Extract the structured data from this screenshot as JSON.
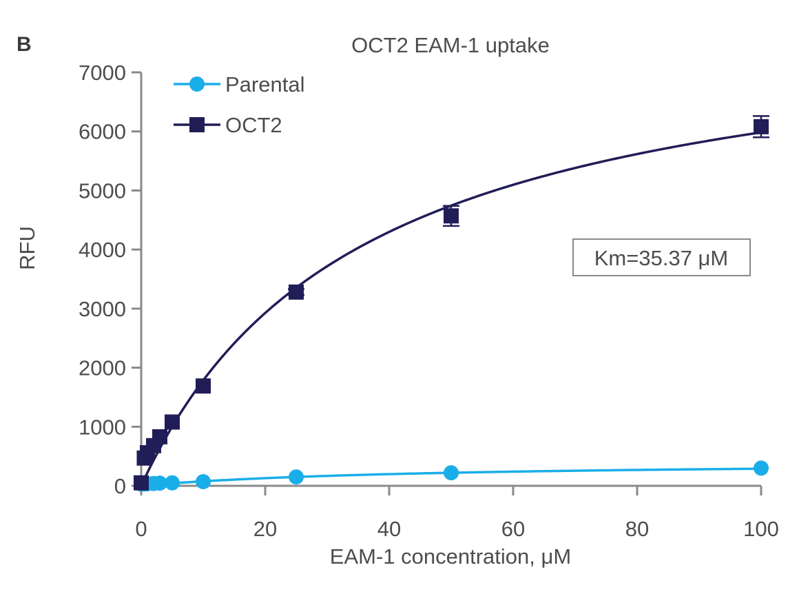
{
  "chart_data": {
    "type": "scatter",
    "panel_label": "B",
    "title": "OCT2 EAM-1 uptake",
    "xlabel": "EAM-1 concentration, μM",
    "ylabel": "RFU",
    "xlim": [
      0,
      100
    ],
    "ylim": [
      0,
      7000
    ],
    "x_ticks": [
      0,
      20,
      40,
      60,
      80,
      100
    ],
    "y_ticks": [
      0,
      1000,
      2000,
      3000,
      4000,
      5000,
      6000,
      7000
    ],
    "grid": false,
    "legend_position": "top-left",
    "annotation": "Km=35.37 μM",
    "series": [
      {
        "name": "Parental",
        "color": "#1aaee8",
        "marker": "circle",
        "fit": "michaelis-menten",
        "fit_params": {
          "vmax": 420,
          "km": 45
        },
        "x": [
          0,
          0.5,
          1,
          2,
          3,
          5,
          10,
          25,
          50,
          100
        ],
        "y": [
          30,
          30,
          35,
          40,
          45,
          50,
          70,
          150,
          220,
          300
        ],
        "err": [
          0,
          0,
          0,
          0,
          0,
          0,
          0,
          0,
          0,
          0
        ]
      },
      {
        "name": "OCT2",
        "color": "#211d56",
        "marker": "square",
        "fit": "michaelis-menten",
        "fit_params": {
          "vmax": 8100,
          "km": 35.37
        },
        "x": [
          0,
          0.5,
          1,
          2,
          3,
          5,
          10,
          25,
          50,
          100
        ],
        "y": [
          50,
          470,
          560,
          680,
          830,
          1080,
          1690,
          3280,
          4570,
          6080
        ],
        "err": [
          0,
          0,
          0,
          0,
          0,
          0,
          0,
          50,
          170,
          180
        ]
      }
    ]
  }
}
